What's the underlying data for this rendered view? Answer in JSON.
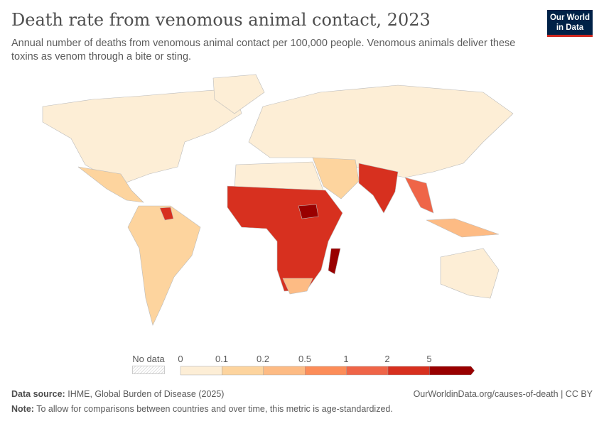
{
  "title": "Death rate from venomous animal contact, 2023",
  "subtitle": "Annual number of deaths from venomous animal contact per 100,000 people. Venomous animals deliver these toxins as venom through a bite or sting.",
  "logo": "Our World in Data",
  "legend": {
    "no_data": "No data",
    "ticks": [
      "0",
      "0.1",
      "0.2",
      "0.5",
      "1",
      "2",
      "5"
    ],
    "colors": [
      "#fdeed6",
      "#fdd49e",
      "#fdbb84",
      "#fc8d59",
      "#ef6548",
      "#d7301f",
      "#990000"
    ]
  },
  "footer": {
    "source_label": "Data source:",
    "source": "IHME, Global Burden of Disease (2025)",
    "url": "OurWorldinData.org/causes-of-death | CC BY",
    "note_label": "Note:",
    "note": "To allow for comparisons between countries and over time, this metric is age-standardized."
  }
}
